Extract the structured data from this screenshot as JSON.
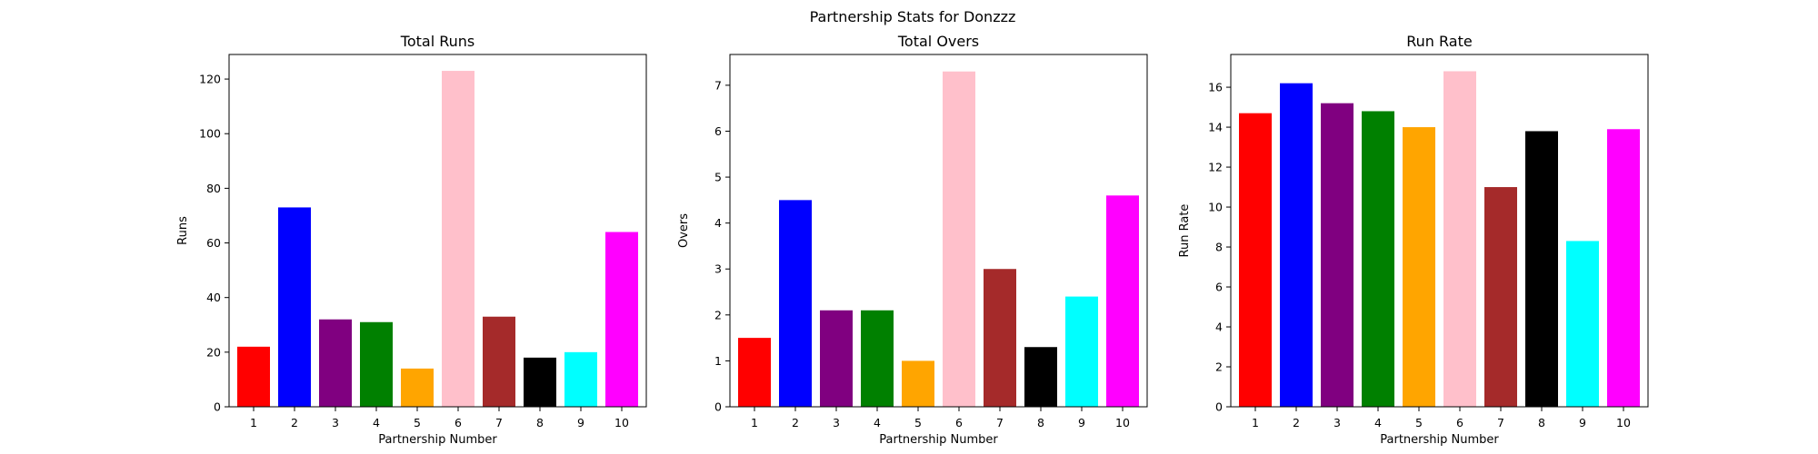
{
  "figure": {
    "title": "Partnership Stats for Donzzz"
  },
  "chart_data": [
    {
      "type": "bar",
      "title": "Total Runs",
      "xlabel": "Partnership Number",
      "ylabel": "Runs",
      "categories": [
        "1",
        "2",
        "3",
        "4",
        "5",
        "6",
        "7",
        "8",
        "9",
        "10"
      ],
      "values": [
        22,
        73,
        32,
        31,
        14,
        123,
        33,
        18,
        20,
        64
      ],
      "ylim": [
        0,
        129
      ],
      "yticks": [
        0,
        20,
        40,
        60,
        80,
        100,
        120
      ],
      "ytick_labels": [
        "0",
        "20",
        "40",
        "60",
        "80",
        "100",
        "120"
      ],
      "colors": [
        "#ff0000",
        "#0000ff",
        "#800080",
        "#008000",
        "#ffa500",
        "#ffc0cb",
        "#a52a2a",
        "#000000",
        "#00ffff",
        "#ff00ff"
      ],
      "grid": false
    },
    {
      "type": "bar",
      "title": "Total Overs",
      "xlabel": "Partnership Number",
      "ylabel": "Overs",
      "categories": [
        "1",
        "2",
        "3",
        "4",
        "5",
        "6",
        "7",
        "8",
        "9",
        "10"
      ],
      "values": [
        1.5,
        4.5,
        2.1,
        2.1,
        1.0,
        7.3,
        3.0,
        1.3,
        2.4,
        4.6
      ],
      "ylim": [
        0,
        7.67
      ],
      "yticks": [
        0,
        1,
        2,
        3,
        4,
        5,
        6,
        7
      ],
      "ytick_labels": [
        "0",
        "1",
        "2",
        "3",
        "4",
        "5",
        "6",
        "7"
      ],
      "colors": [
        "#ff0000",
        "#0000ff",
        "#800080",
        "#008000",
        "#ffa500",
        "#ffc0cb",
        "#a52a2a",
        "#000000",
        "#00ffff",
        "#ff00ff"
      ],
      "grid": false
    },
    {
      "type": "bar",
      "title": "Run Rate",
      "xlabel": "Partnership Number",
      "ylabel": "Run Rate",
      "categories": [
        "1",
        "2",
        "3",
        "4",
        "5",
        "6",
        "7",
        "8",
        "9",
        "10"
      ],
      "values": [
        14.7,
        16.2,
        15.2,
        14.8,
        14.0,
        16.8,
        11.0,
        13.8,
        8.3,
        13.9
      ],
      "ylim": [
        0,
        17.64
      ],
      "yticks": [
        0,
        2,
        4,
        6,
        8,
        10,
        12,
        14,
        16
      ],
      "ytick_labels": [
        "0",
        "2",
        "4",
        "6",
        "8",
        "10",
        "12",
        "14",
        "16"
      ],
      "colors": [
        "#ff0000",
        "#0000ff",
        "#800080",
        "#008000",
        "#ffa500",
        "#ffc0cb",
        "#a52a2a",
        "#000000",
        "#00ffff",
        "#ff00ff"
      ],
      "grid": false
    }
  ]
}
